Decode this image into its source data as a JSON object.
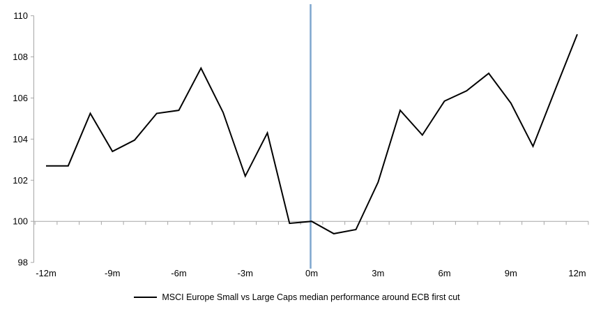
{
  "page": {
    "background_color": "#ffffff"
  },
  "chart_data": {
    "type": "line",
    "title": "",
    "xlabel": "",
    "ylabel": "",
    "x": [
      -12,
      -11,
      -10,
      -9,
      -8,
      -7,
      -6,
      -5,
      -4,
      -3,
      -2,
      -1,
      0,
      1,
      2,
      3,
      4,
      5,
      6,
      7,
      8,
      9,
      10,
      11,
      12
    ],
    "series": [
      {
        "name": "MSCI Europe Small vs Large Caps median performance around ECB first cut",
        "color": "#000000",
        "values": [
          102.7,
          102.7,
          105.25,
          103.4,
          103.95,
          105.25,
          105.4,
          107.45,
          105.3,
          102.2,
          104.3,
          99.9,
          100.0,
          99.4,
          99.6,
          101.9,
          105.4,
          104.2,
          105.85,
          106.35,
          107.2,
          105.75,
          103.65,
          106.4,
          109.1
        ]
      }
    ],
    "y_ticks": [
      "110",
      "108",
      "106",
      "104",
      "102",
      "100",
      "98"
    ],
    "y_tick_values": [
      110,
      108,
      106,
      104,
      102,
      100,
      98
    ],
    "ylim": [
      98,
      110
    ],
    "x_tick_labels": [
      "-12m",
      "-9m",
      "-6m",
      "-3m",
      "0m",
      "3m",
      "6m",
      "9m",
      "12m"
    ],
    "x_tick_months": [
      -12,
      -9,
      -6,
      -3,
      0,
      3,
      6,
      9,
      12
    ],
    "baseline_value": 100,
    "event_line": {
      "x_month": 0,
      "color": "#7EA6CE"
    },
    "axis_color": "#A6A6A6",
    "grid": "off",
    "legend_position": "bottom"
  }
}
